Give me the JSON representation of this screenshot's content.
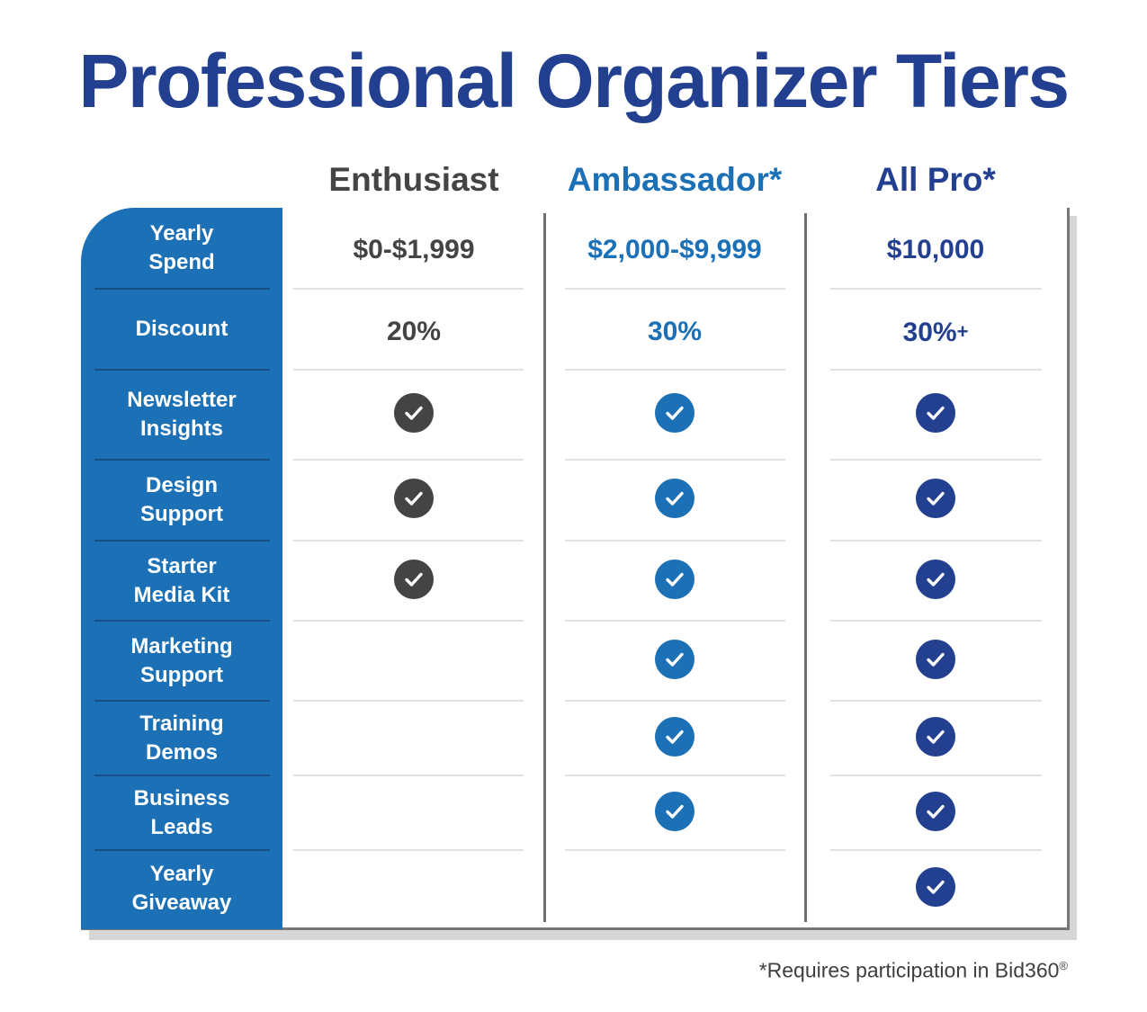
{
  "title": "Professional Organizer Tiers",
  "colors": {
    "title": "#22408f",
    "enthusiast": "#444444",
    "ambassador": "#1c70b6",
    "allpro": "#22408f",
    "sidebar": "#1c70b6"
  },
  "tiers": [
    {
      "name": "Enthusiast",
      "spend": "$0-$1,999",
      "discount": "20%",
      "discount_suffix": "",
      "color_key": "enthusiast"
    },
    {
      "name": "Ambassador*",
      "spend": "$2,000-$9,999",
      "discount": "30%",
      "discount_suffix": "",
      "color_key": "ambassador"
    },
    {
      "name": "All Pro*",
      "spend": "$10,000",
      "discount": "30%",
      "discount_suffix": "+",
      "color_key": "allpro"
    }
  ],
  "rows": [
    {
      "label_line1": "Yearly",
      "label_line2": "Spend",
      "type": "text_spend"
    },
    {
      "label_line1": "Discount",
      "label_line2": "",
      "type": "text_discount"
    },
    {
      "label_line1": "Newsletter",
      "label_line2": "Insights",
      "type": "check",
      "checks": [
        true,
        true,
        true
      ]
    },
    {
      "label_line1": "Design",
      "label_line2": "Support",
      "type": "check",
      "checks": [
        true,
        true,
        true
      ]
    },
    {
      "label_line1": "Starter",
      "label_line2": "Media Kit",
      "type": "check",
      "checks": [
        true,
        true,
        true
      ]
    },
    {
      "label_line1": "Marketing",
      "label_line2": "Support",
      "type": "check",
      "checks": [
        false,
        true,
        true
      ]
    },
    {
      "label_line1": "Training",
      "label_line2": "Demos",
      "type": "check",
      "checks": [
        false,
        true,
        true
      ]
    },
    {
      "label_line1": "Business",
      "label_line2": "Leads",
      "type": "check",
      "checks": [
        false,
        true,
        true
      ]
    },
    {
      "label_line1": "Yearly",
      "label_line2": "Giveaway",
      "type": "check",
      "checks": [
        false,
        false,
        true
      ]
    }
  ],
  "footnote": "*Requires participation in Bid360",
  "footnote_mark": "®",
  "icons": {
    "check": "check-circle-icon"
  }
}
